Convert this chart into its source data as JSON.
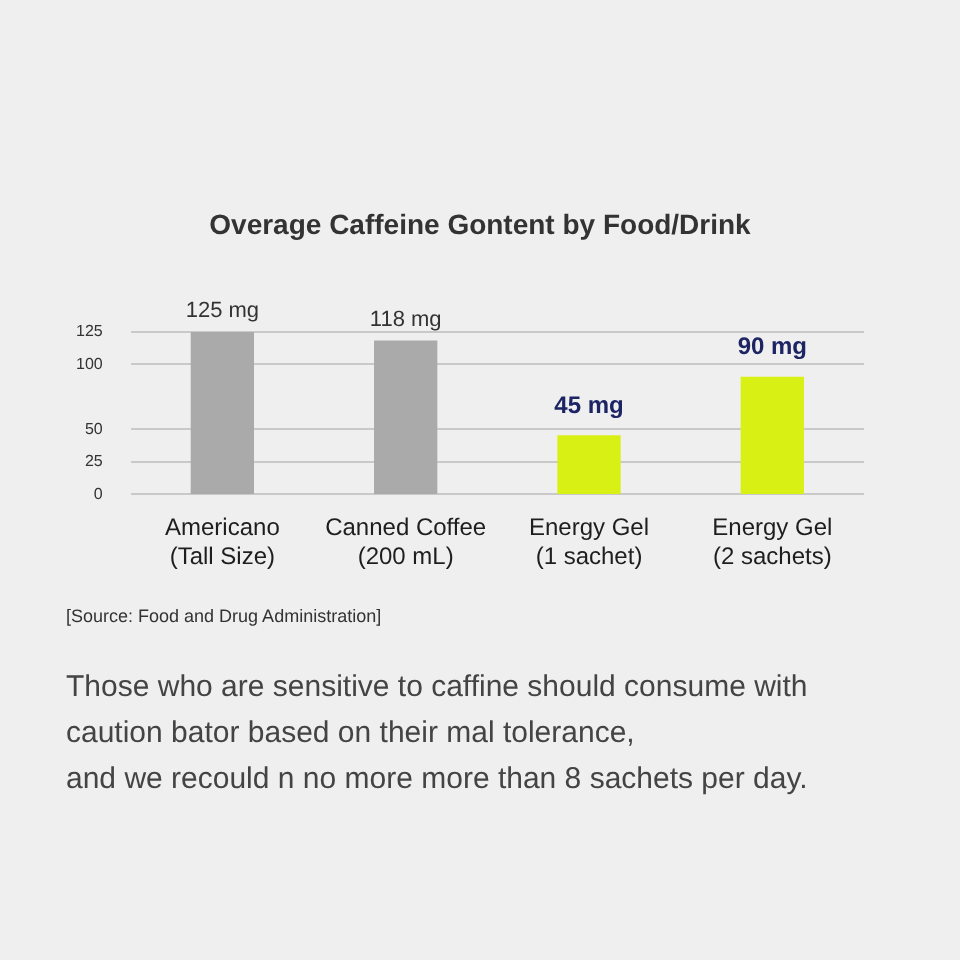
{
  "chart_data": {
    "type": "bar",
    "title": "Overage Caffeine Gontent by Food/Drink",
    "categories": [
      "Americano\n(Tall Size)",
      "Canned Coffee\n(200 mL)",
      "Energy Gel\n(1 sachet)",
      "Energy Gel\n(2 sachets)"
    ],
    "values": [
      125,
      118,
      45,
      90
    ],
    "colors": [
      "#aaaaaa",
      "#aaaaaa",
      "#d9f014",
      "#d9f014"
    ],
    "value_labels": [
      "125 mg",
      "118 mg",
      "45 mg",
      "90 mg"
    ],
    "ylim": [
      0,
      125
    ],
    "yticks": [
      0,
      25,
      50,
      100,
      125
    ],
    "grid": "y",
    "legend": false,
    "annotations": [
      "[Source: Food and Drug Administration]",
      "Those who are sensitive to caffine should consume with caution bator based on their mal tolerance,\nand we recould n no more more than 8 sachets per day."
    ]
  }
}
